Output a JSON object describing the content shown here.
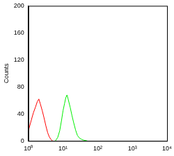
{
  "chart_data": {
    "type": "line",
    "y_label": "Counts",
    "log": "x",
    "grid": false,
    "x": [
      1,
      1.2,
      1.4,
      1.6,
      1.8,
      2,
      2.2,
      2.5,
      2.8,
      3.2,
      3.6,
      4,
      4.5,
      5,
      6,
      7,
      8,
      9,
      10,
      11,
      12,
      13,
      14,
      16,
      18,
      20,
      23,
      26,
      30,
      35,
      40,
      50
    ],
    "series": [
      {
        "color": "#ff0000",
        "values": [
          15,
          30,
          42,
          50,
          58,
          62,
          55,
          45,
          35,
          22,
          12,
          6,
          2,
          0,
          null,
          null,
          null,
          null,
          null,
          null,
          null,
          null,
          null,
          null,
          null,
          null,
          null,
          null,
          null,
          null,
          null,
          null
        ]
      },
      {
        "color": "#00ee00",
        "values": [
          null,
          null,
          null,
          null,
          null,
          null,
          null,
          null,
          null,
          null,
          null,
          null,
          null,
          null,
          0,
          5,
          15,
          30,
          45,
          55,
          64,
          68,
          62,
          50,
          38,
          28,
          16,
          8,
          4,
          2,
          1,
          0
        ]
      }
    ],
    "xlim": [
      1,
      10000
    ],
    "xticks": [
      {
        "value": 1,
        "label": "10⁰"
      },
      {
        "value": 10,
        "label": "10¹"
      },
      {
        "value": 100,
        "label": "10²"
      },
      {
        "value": 1000,
        "label": "10³"
      },
      {
        "value": 10000,
        "label": "10⁴"
      }
    ],
    "ylim": [
      0,
      200
    ],
    "yticks": [
      0,
      40,
      80,
      120,
      160,
      200
    ]
  }
}
